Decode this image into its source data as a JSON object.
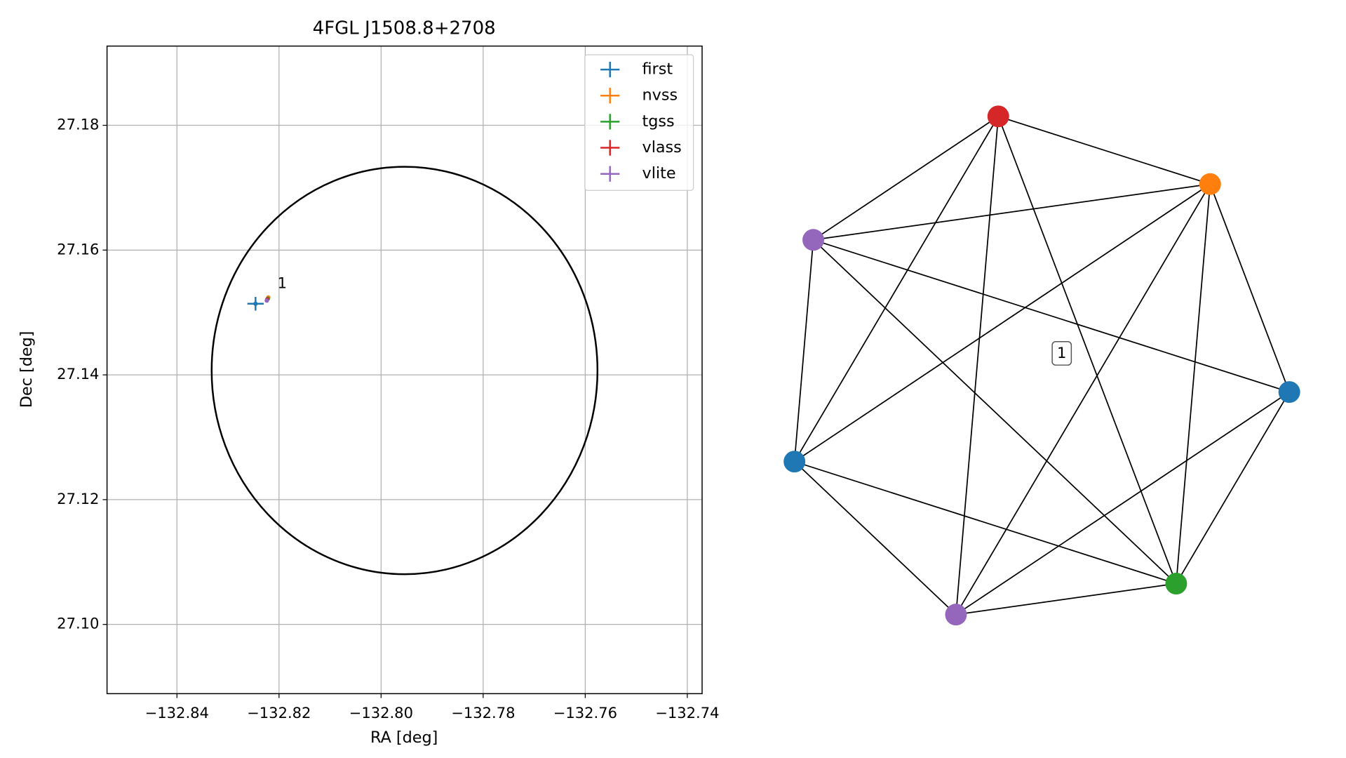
{
  "chart_data": [
    {
      "type": "scatter",
      "title": "4FGL J1508.8+2708",
      "xlabel": "RA [deg]",
      "ylabel": "Dec [deg]",
      "xlim": [
        -132.8537,
        -132.7371
      ],
      "ylim": [
        27.0889,
        27.1927
      ],
      "xticks": [
        {
          "value": -132.84,
          "label": "−132.84"
        },
        {
          "value": -132.82,
          "label": "−132.82"
        },
        {
          "value": -132.8,
          "label": "−132.80"
        },
        {
          "value": -132.78,
          "label": "−132.78"
        },
        {
          "value": -132.76,
          "label": "−132.76"
        },
        {
          "value": -132.74,
          "label": "−132.74"
        }
      ],
      "yticks": [
        {
          "value": 27.1,
          "label": "27.10"
        },
        27.12,
        27.14,
        27.16,
        27.18
      ],
      "grid": true,
      "legend": "upper right",
      "series": [
        {
          "name": "first",
          "color": "#1f77b4",
          "x": [
            -132.8246
          ],
          "y": [
            27.1514
          ],
          "x_err": [
            0.0016
          ],
          "y_err": [
            0.0011
          ]
        },
        {
          "name": "nvss",
          "color": "#ff7f0e",
          "x": [
            -132.8221
          ],
          "y": [
            27.1524
          ],
          "x_err": [
            0.0004
          ],
          "y_err": [
            0.0003
          ]
        },
        {
          "name": "tgss",
          "color": "#2ca02c",
          "x": [
            -132.8222
          ],
          "y": [
            27.1522
          ],
          "x_err": [
            0.0003
          ],
          "y_err": [
            0.0003
          ]
        },
        {
          "name": "vlass",
          "color": "#d62728",
          "x": [
            -132.8223
          ],
          "y": [
            27.1521
          ],
          "x_err": [
            0.0002
          ],
          "y_err": [
            0.0002
          ]
        },
        {
          "name": "vlite",
          "color": "#9467bd",
          "x": [
            -132.8224
          ],
          "y": [
            27.1519
          ],
          "x_err": [
            0.0003
          ],
          "y_err": [
            0.0003
          ]
        }
      ],
      "ellipse": {
        "center": [
          -132.7954,
          27.1407
        ],
        "width": 0.0756,
        "height": 0.0653,
        "color": "#000000"
      },
      "annotations": [
        {
          "text": "1",
          "x": -132.8203,
          "y": 27.1539
        }
      ]
    },
    {
      "type": "graph",
      "label": "1",
      "nodes": [
        {
          "color": "#d62728"
        },
        {
          "color": "#ff7f0e"
        },
        {
          "color": "#1f77b4"
        },
        {
          "color": "#2ca02c"
        },
        {
          "color": "#9467bd"
        },
        {
          "color": "#1f77b4"
        },
        {
          "color": "#9467bd"
        }
      ],
      "edges": [
        [
          0,
          1
        ],
        [
          0,
          3
        ],
        [
          0,
          4
        ],
        [
          0,
          5
        ],
        [
          0,
          6
        ],
        [
          1,
          2
        ],
        [
          1,
          3
        ],
        [
          1,
          4
        ],
        [
          1,
          5
        ],
        [
          1,
          6
        ],
        [
          2,
          3
        ],
        [
          2,
          4
        ],
        [
          2,
          6
        ],
        [
          3,
          4
        ],
        [
          3,
          5
        ],
        [
          3,
          6
        ],
        [
          4,
          5
        ],
        [
          5,
          6
        ]
      ]
    }
  ]
}
